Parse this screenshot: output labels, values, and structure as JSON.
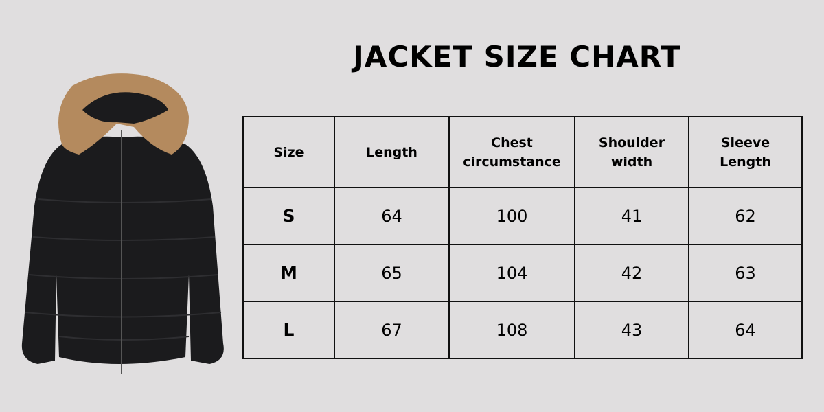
{
  "title": "JACKET SIZE CHART",
  "image": {
    "alt_icon": "black-puffer-jacket-with-fur-hood",
    "jacket_color": "#1b1b1d",
    "fur_color": "#b48a5e"
  },
  "table": {
    "headers": [
      "Size",
      "Length",
      "Chest circumstance",
      "Shoulder width",
      "Sleeve Length"
    ],
    "rows": [
      [
        "S",
        "64",
        "100",
        "41",
        "62"
      ],
      [
        "M",
        "65",
        "104",
        "42",
        "63"
      ],
      [
        "L",
        "67",
        "108",
        "43",
        "64"
      ]
    ]
  }
}
